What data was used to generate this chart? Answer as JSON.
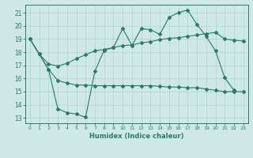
{
  "xlabel": "Humidex (Indice chaleur)",
  "bg_color": "#cde8e5",
  "line_color": "#2a7a6e",
  "grid_color": "#aed4cf",
  "xlim": [
    -0.5,
    23.5
  ],
  "ylim": [
    12.6,
    21.6
  ],
  "yticks": [
    13,
    14,
    15,
    16,
    17,
    18,
    19,
    20,
    21
  ],
  "xticks": [
    0,
    1,
    2,
    3,
    4,
    5,
    6,
    7,
    8,
    9,
    10,
    11,
    12,
    13,
    14,
    15,
    16,
    17,
    18,
    19,
    20,
    21,
    22,
    23
  ],
  "line1_x": [
    0,
    1,
    2,
    3,
    4,
    5,
    6,
    7,
    8,
    9,
    10,
    11,
    12,
    13,
    14,
    15,
    16,
    17,
    18,
    19,
    20,
    21,
    22
  ],
  "line1_y": [
    19.0,
    17.85,
    16.7,
    13.7,
    13.4,
    13.3,
    13.05,
    16.55,
    18.15,
    18.35,
    19.8,
    18.5,
    19.8,
    19.7,
    19.35,
    20.65,
    21.0,
    21.2,
    20.1,
    19.2,
    18.1,
    16.05,
    15.1
  ],
  "line2_x": [
    0,
    1,
    2,
    3,
    4,
    5,
    6,
    7,
    8,
    9,
    10,
    11,
    12,
    13,
    14,
    15,
    16,
    17,
    18,
    19,
    20,
    21,
    22,
    23
  ],
  "line2_y": [
    19.0,
    17.85,
    16.7,
    15.85,
    15.65,
    15.5,
    15.5,
    15.45,
    15.45,
    15.45,
    15.45,
    15.45,
    15.45,
    15.45,
    15.4,
    15.35,
    15.35,
    15.3,
    15.3,
    15.2,
    15.1,
    15.0,
    15.0,
    15.0
  ],
  "line3_x": [
    0,
    1,
    2,
    3,
    4,
    5,
    6,
    7,
    8,
    9,
    10,
    11,
    12,
    13,
    14,
    15,
    16,
    17,
    18,
    19,
    20,
    21,
    22,
    23
  ],
  "line3_y": [
    19.0,
    17.85,
    17.1,
    16.95,
    17.15,
    17.5,
    17.8,
    18.1,
    18.2,
    18.35,
    18.5,
    18.55,
    18.7,
    18.8,
    18.95,
    19.05,
    19.1,
    19.2,
    19.3,
    19.4,
    19.5,
    19.0,
    18.9,
    18.85
  ]
}
